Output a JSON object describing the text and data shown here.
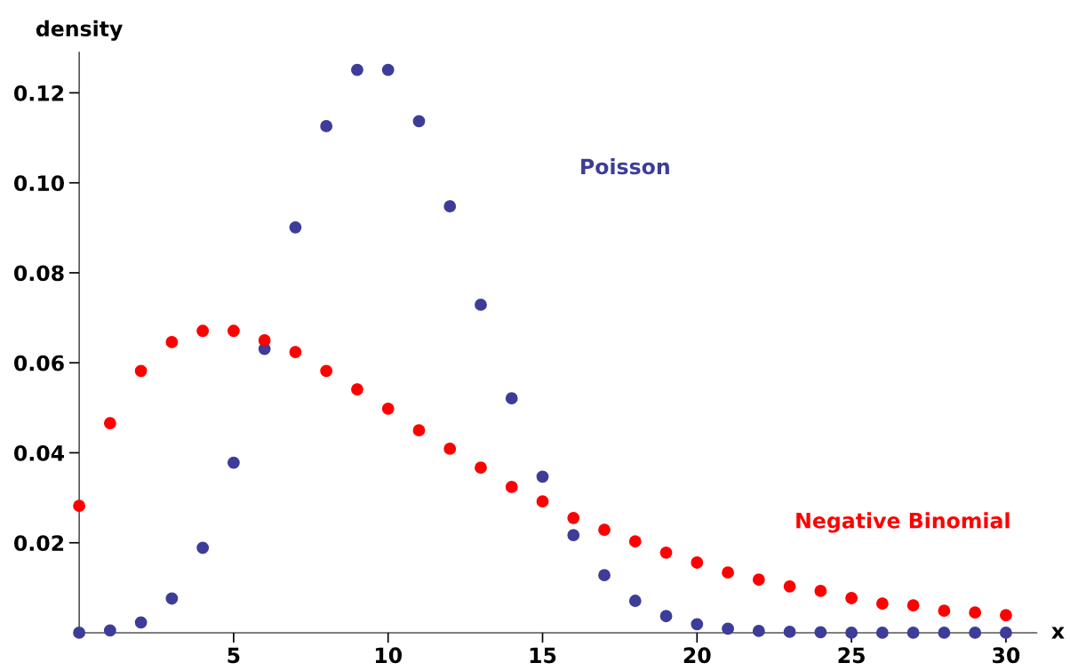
{
  "chart_data": {
    "type": "scatter",
    "xlabel": "x",
    "ylabel": "density",
    "x": [
      0,
      1,
      2,
      3,
      4,
      5,
      6,
      7,
      8,
      9,
      10,
      11,
      12,
      13,
      14,
      15,
      16,
      17,
      18,
      19,
      20,
      21,
      22,
      23,
      24,
      25,
      26,
      27,
      28,
      29,
      30
    ],
    "series": [
      {
        "name": "Poisson",
        "color": "#3d3d99",
        "values": [
          0.0,
          0.0005,
          0.0023,
          0.0076,
          0.0189,
          0.0378,
          0.0631,
          0.0901,
          0.1126,
          0.1251,
          0.1251,
          0.1137,
          0.0948,
          0.0729,
          0.0521,
          0.0347,
          0.0217,
          0.0128,
          0.0071,
          0.0037,
          0.0019,
          0.0009,
          0.0004,
          0.0002,
          0.0001,
          0.0,
          0.0,
          0.0,
          0.0,
          0.0,
          0.0
        ]
      },
      {
        "name": "Negative Binomial",
        "color": "#ff0000",
        "values": [
          0.0282,
          0.0466,
          0.0582,
          0.0646,
          0.0671,
          0.0671,
          0.065,
          0.0624,
          0.0582,
          0.0541,
          0.0498,
          0.045,
          0.0409,
          0.0367,
          0.0324,
          0.0292,
          0.0255,
          0.0229,
          0.0203,
          0.0178,
          0.0156,
          0.0134,
          0.0118,
          0.0103,
          0.0093,
          0.0077,
          0.0065,
          0.0061,
          0.0049,
          0.0045,
          0.0039
        ]
      }
    ],
    "xlim": [
      0,
      31
    ],
    "ylim": [
      0,
      0.129
    ],
    "xticks": [
      5,
      10,
      15,
      20,
      25,
      30
    ],
    "yticks": [
      {
        "value": 0.02,
        "label": "0.02"
      },
      {
        "value": 0.04,
        "label": "0.04"
      },
      {
        "value": 0.06,
        "label": "0.06"
      },
      {
        "value": 0.08,
        "label": "0.08"
      },
      {
        "value": 0.1,
        "label": "0.10"
      },
      {
        "value": 0.12,
        "label": "0.12"
      }
    ],
    "marker": "circle",
    "grid": false,
    "legend": false
  }
}
